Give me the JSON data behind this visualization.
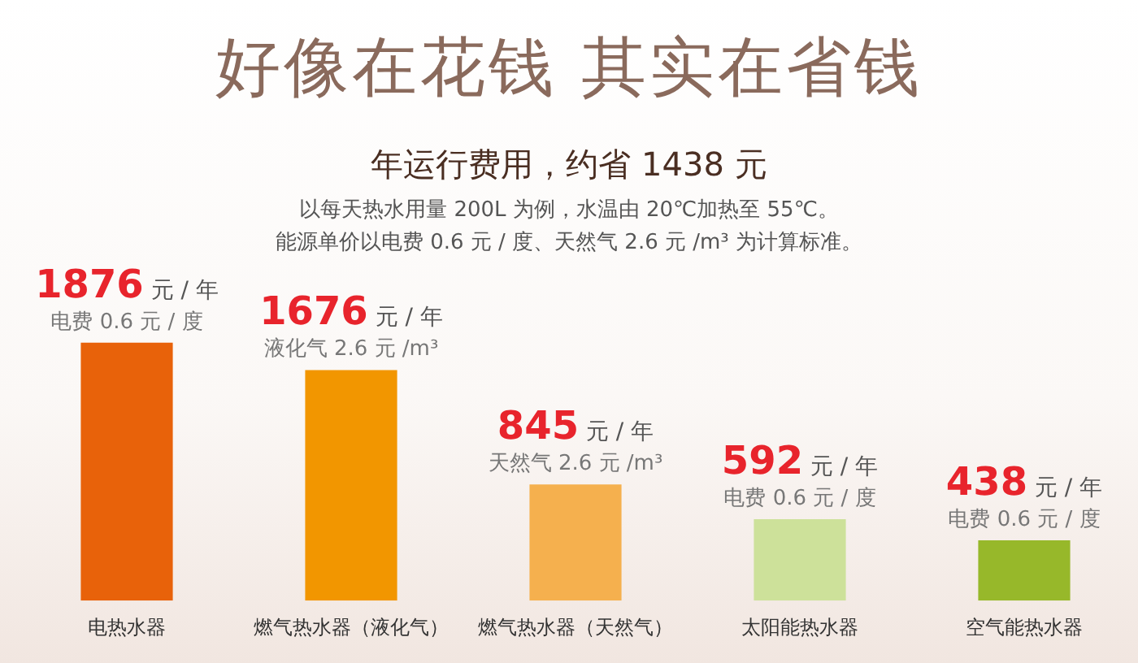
{
  "chart_data": {
    "type": "bar",
    "title": "好像在花钱 其实在省钱",
    "subtitle": "年运行费用，约省 1438 元",
    "categories": [
      "电热水器",
      "燃气热水器（液化气）",
      "燃气热水器（天然气）",
      "太阳能热水器",
      "空气能热水器"
    ],
    "values": [
      1876,
      1676,
      845,
      592,
      438
    ],
    "colors": [
      "#e8620a",
      "#f29600",
      "#f5b04e",
      "#cde19a",
      "#97b82a"
    ],
    "data_labels": true,
    "grid": false,
    "legend": false,
    "tick_labels": "x",
    "annotations": [
      "以每天热水用量 200L 为例，水温由 20℃加热至 55℃。",
      "能源单价以电费 0.6 元 / 度、天然气 2.6 元 /m³ 为计算标准。",
      "元 / 年",
      "电费 0.6 元 / 度",
      "元 / 年",
      "液化气 2.6 元 /m³",
      "元 / 年",
      "天然气 2.6 元 /m³",
      "元 / 年",
      "电费 0.6 元 / 度",
      "元 / 年",
      "电费 0.6 元 / 度"
    ]
  }
}
